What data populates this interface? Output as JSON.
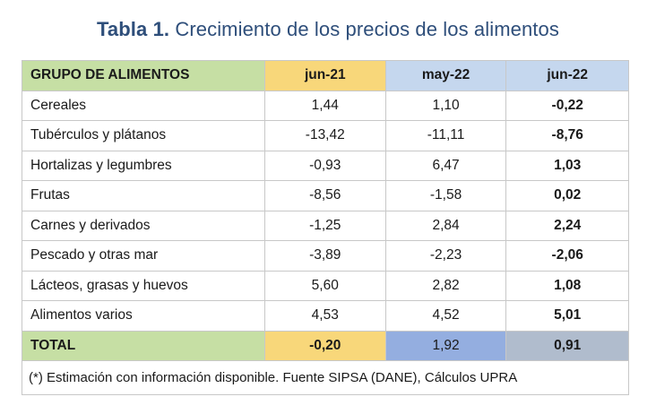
{
  "title": {
    "label": "Tabla 1.",
    "text": "Crecimiento de los precios de los alimentos"
  },
  "table": {
    "headers": [
      "GRUPO DE ALIMENTOS",
      "jun-21",
      "may-22",
      "jun-22"
    ],
    "rows": [
      [
        "Cereales",
        "1,44",
        "1,10",
        "-0,22"
      ],
      [
        "Tubérculos y plátanos",
        "-13,42",
        "-11,11",
        "-8,76"
      ],
      [
        "Hortalizas y legumbres",
        "-0,93",
        "6,47",
        "1,03"
      ],
      [
        "Frutas",
        "-8,56",
        "-1,58",
        "0,02"
      ],
      [
        "Carnes y derivados",
        "-1,25",
        "2,84",
        "2,24"
      ],
      [
        "Pescado y otras mar",
        "-3,89",
        "-2,23",
        "-2,06"
      ],
      [
        "Lácteos, grasas y huevos",
        "5,60",
        "2,82",
        "1,08"
      ],
      [
        "Alimentos varios",
        "4,53",
        "4,52",
        "5,01"
      ]
    ],
    "total": [
      "TOTAL",
      "-0,20",
      "1,92",
      "0,91"
    ],
    "note": "(*) Estimación con información disponible. Fuente SIPSA (DANE), Cálculos UPRA"
  },
  "colors": {
    "title": "#2e4e7a",
    "group_header": "#c6dfa4",
    "jun21_header": "#f8d77a",
    "may22_header": "#c5d7ee",
    "jun22_header": "#c5d7ee",
    "total_may22": "#94aee0",
    "total_jun22": "#b0bccd"
  }
}
